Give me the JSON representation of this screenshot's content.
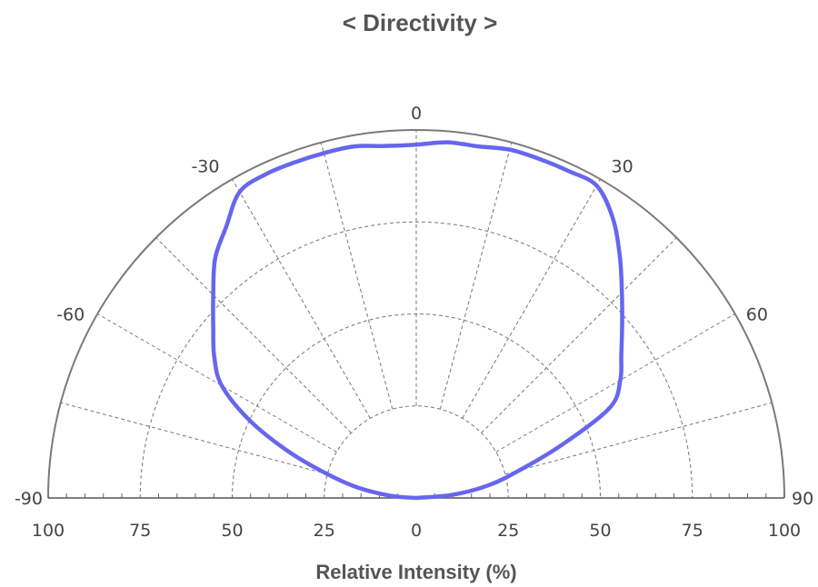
{
  "chart_data": {
    "type": "polar-half",
    "title": "< Directivity >",
    "xlabel": "Relative Intensity (%)",
    "radial_range": [
      0,
      100
    ],
    "radial_ticks": [
      100,
      75,
      50,
      25,
      0,
      25,
      50,
      75,
      100
    ],
    "angle_range": [
      -90,
      90
    ],
    "angle_labels": [
      "-90",
      "-60",
      "-30",
      "0",
      "30",
      "60",
      "90"
    ],
    "angle_label_values": [
      -90,
      -60,
      -30,
      0,
      30,
      60,
      90
    ],
    "spoke_angles": [
      -75,
      -60,
      -45,
      -30,
      -15,
      0,
      15,
      30,
      45,
      60,
      75
    ],
    "grid_rings": [
      25,
      50,
      75
    ],
    "series": [
      {
        "color": "#6666ee",
        "angles": [
          -90,
          -85,
          -80,
          -75,
          -70,
          -65,
          -60,
          -55,
          -50,
          -45,
          -40,
          -35,
          -30,
          -25,
          -20,
          -15,
          -10,
          -5,
          0,
          5,
          10,
          15,
          20,
          25,
          30,
          35,
          40,
          45,
          50,
          55,
          60,
          65,
          70,
          75,
          80,
          85,
          90
        ],
        "values": [
          0,
          7,
          16,
          25,
          37,
          50,
          61,
          67,
          72,
          78,
          85,
          90,
          96,
          97,
          97,
          97,
          97,
          96,
          96,
          97,
          97,
          98,
          98,
          98,
          98,
          93,
          86,
          79,
          73,
          68,
          64,
          58,
          42,
          29,
          20,
          10,
          0
        ]
      }
    ]
  }
}
